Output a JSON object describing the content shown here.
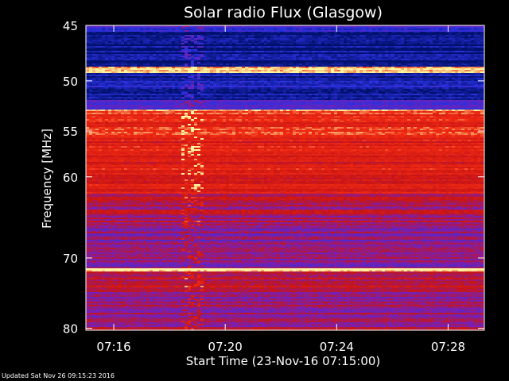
{
  "chart_data": {
    "type": "heatmap",
    "title": "Solar radio Flux (Glasgow)",
    "xlabel": "Start Time (23-Nov-16 07:15:00)",
    "ylabel": "Frequency [MHz]",
    "xlim": [
      0,
      14.3
    ],
    "ylim": [
      45,
      80.3
    ],
    "y_scale": "log",
    "x_ticks": [
      {
        "value": 1,
        "label": "07:16"
      },
      {
        "value": 5,
        "label": "07:20"
      },
      {
        "value": 9,
        "label": "07:24"
      },
      {
        "value": 13,
        "label": "07:28"
      }
    ],
    "y_ticks": [
      {
        "value": 45,
        "label": "45"
      },
      {
        "value": 50,
        "label": "50"
      },
      {
        "value": 55,
        "label": "55"
      },
      {
        "value": 60,
        "label": "60"
      },
      {
        "value": 70,
        "label": "70"
      },
      {
        "value": 80,
        "label": "80"
      }
    ],
    "colors": {
      "low": "#00106a",
      "mid_low": "#2a30e0",
      "mid": "#7a1fb0",
      "mid_high": "#c81416",
      "high": "#f02a12",
      "peak": "#fff7a0"
    },
    "bands": [
      {
        "from": 45.0,
        "to": 45.6,
        "level": 0.25
      },
      {
        "from": 45.6,
        "to": 48.6,
        "level": 0.05
      },
      {
        "from": 48.6,
        "to": 49.2,
        "level": 1.0
      },
      {
        "from": 49.2,
        "to": 51.8,
        "level": 0.12
      },
      {
        "from": 51.8,
        "to": 52.8,
        "level": 0.3
      },
      {
        "from": 52.8,
        "to": 53.3,
        "level": 0.95
      },
      {
        "from": 53.3,
        "to": 56.0,
        "level": 0.8
      },
      {
        "from": 56.0,
        "to": 62.0,
        "level": 0.72
      },
      {
        "from": 62.0,
        "to": 66.0,
        "level": 0.55
      },
      {
        "from": 66.0,
        "to": 71.3,
        "level": 0.45
      },
      {
        "from": 71.3,
        "to": 71.8,
        "level": 1.0
      },
      {
        "from": 71.8,
        "to": 74.5,
        "level": 0.6
      },
      {
        "from": 74.5,
        "to": 80.3,
        "level": 0.5
      }
    ]
  },
  "footer": {
    "updated": "Updated Sat Nov 26 09:15:23 2016"
  }
}
